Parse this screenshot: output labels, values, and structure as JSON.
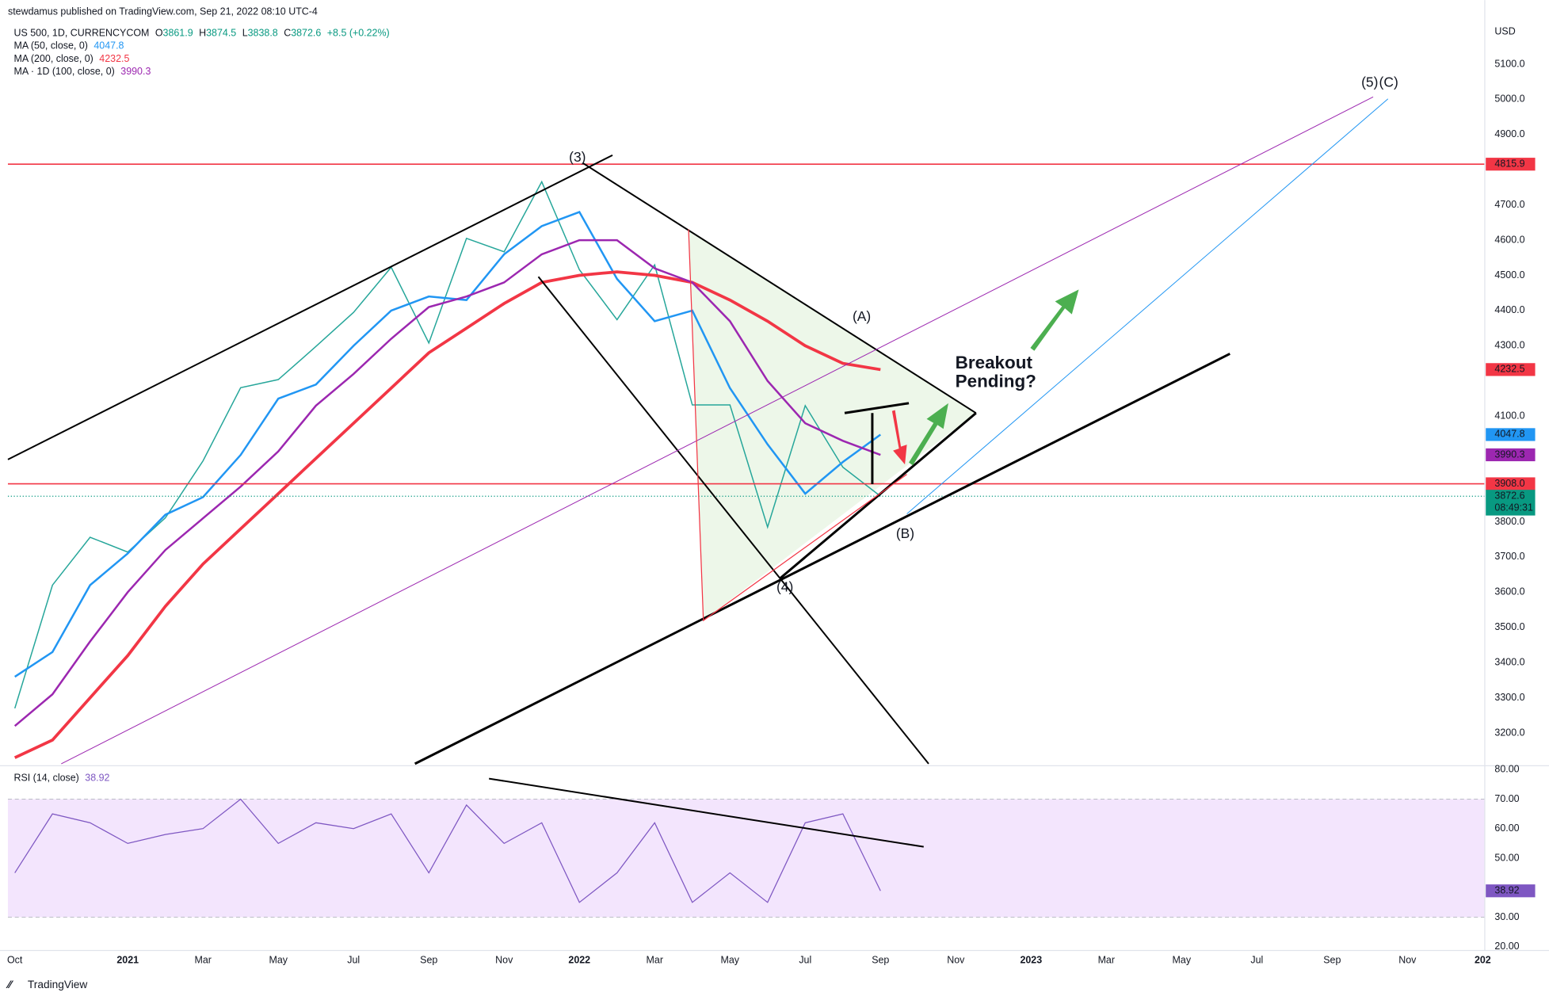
{
  "header": {
    "publisher": "stewdamus published on TradingView.com, Sep 21, 2022 08:10 UTC-4",
    "symbol": "US 500, 1D, CURRENCYCOM",
    "ohlc": [
      {
        "label": "O",
        "value": 3861.9
      },
      {
        "label": "H",
        "value": 3874.5
      },
      {
        "label": "L",
        "value": 3838.8
      },
      {
        "label": "C",
        "value": 3872.6
      }
    ],
    "change": "+8.5 (+0.22%)",
    "currency": "USD",
    "footer": "TradingView"
  },
  "annotations": {
    "w3": "(3)",
    "w4": "(4)",
    "wA": "(A)",
    "wB": "(B)",
    "w5": "(5)",
    "wC": "(C)",
    "breakout1": "Breakout",
    "breakout2": "Pending?"
  },
  "chart_data": [
    {
      "type": "line",
      "categories": [
        "Oct",
        null,
        null,
        "2021",
        null,
        "Mar",
        null,
        "May",
        null,
        "Jul",
        null,
        "Sep",
        null,
        "Nov",
        null,
        "2022",
        null,
        "Mar",
        null,
        "May",
        null,
        "Jul",
        null,
        "Sep",
        null,
        "Nov",
        null,
        "2023",
        null,
        "Mar",
        null,
        "May",
        null,
        "Jul",
        null,
        "Sep",
        null,
        "Nov",
        null,
        "202"
      ],
      "ylim": [
        3107,
        5282
      ],
      "yticks": [
        {
          "value": 3200,
          "label": "3200.0"
        },
        {
          "value": 3300,
          "label": "3300.0"
        },
        {
          "value": 3400,
          "label": "3400.0"
        },
        {
          "value": 3500,
          "label": "3500.0"
        },
        {
          "value": 3600,
          "label": "3600.0"
        },
        {
          "value": 3700,
          "label": "3700.0"
        },
        {
          "value": 3800,
          "label": "3800.0"
        },
        {
          "value": 4100,
          "label": "4100.0"
        },
        {
          "value": 4300,
          "label": "4300.0"
        },
        {
          "value": 4400,
          "label": "4400.0"
        },
        {
          "value": 4500,
          "label": "4500.0"
        },
        {
          "value": 4600,
          "label": "4600.0"
        },
        {
          "value": 4700,
          "label": "4700.0"
        },
        {
          "value": 4900,
          "label": "4900.0"
        },
        {
          "value": 5000,
          "label": "5000.0"
        },
        {
          "value": 5100,
          "label": "5100.0"
        }
      ],
      "levels": [
        {
          "value": 4815.9,
          "label": "4815.9",
          "color": "#f23645"
        },
        {
          "value": 3908,
          "label": "3908.0",
          "color": "#f23645"
        }
      ],
      "last_price": {
        "value": 3872.6,
        "label": "3872.6",
        "countdown": "08:49:31",
        "color": "#089981"
      },
      "series": [
        {
          "name": "Price",
          "color": "#26a69a",
          "values": [
            3270,
            3620,
            3756,
            3714,
            3811,
            3973,
            4181,
            4204,
            4298,
            4395,
            4523,
            4308,
            4605,
            4567,
            4766,
            4516,
            4374,
            4530,
            4132,
            4132,
            3785,
            4130,
            3955,
            3872.6,
            null,
            null,
            null,
            null,
            null,
            null,
            null,
            null,
            null,
            null,
            null,
            null,
            null,
            null,
            null,
            null
          ]
        },
        {
          "name": "MA (50, close, 0)",
          "color": "#2196f3",
          "values": [
            3360,
            3430,
            3620,
            3710,
            3820,
            3870,
            3990,
            4150,
            4190,
            4300,
            4400,
            4440,
            4430,
            4560,
            4640,
            4680,
            4490,
            4370,
            4400,
            4180,
            4020,
            3880,
            3970,
            4047.8,
            null,
            null,
            null,
            null,
            null,
            null,
            null,
            null,
            null,
            null,
            null,
            null,
            null,
            null,
            null,
            null
          ]
        },
        {
          "name": "MA (200, close, 0)",
          "color": "#f23645",
          "values": [
            3130,
            3180,
            3300,
            3420,
            3560,
            3680,
            3780,
            3880,
            3980,
            4080,
            4180,
            4280,
            4350,
            4420,
            4480,
            4500,
            4510,
            4500,
            4480,
            4430,
            4370,
            4300,
            4250,
            4232.5,
            null,
            null,
            null,
            null,
            null,
            null,
            null,
            null,
            null,
            null,
            null,
            null,
            null,
            null,
            null,
            null
          ]
        },
        {
          "name": "MA · 1D (100, close, 0)",
          "color": "#9c27b0",
          "values": [
            3220,
            3310,
            3460,
            3600,
            3720,
            3810,
            3900,
            4000,
            4130,
            4220,
            4320,
            4410,
            4440,
            4480,
            4560,
            4600,
            4600,
            4520,
            4480,
            4370,
            4200,
            4080,
            4030,
            3990.3,
            null,
            null,
            null,
            null,
            null,
            null,
            null,
            null,
            null,
            null,
            null,
            null,
            null,
            null,
            null,
            null
          ]
        }
      ]
    },
    {
      "type": "line",
      "ylim": [
        18.7,
        81.3
      ],
      "yticks": [
        {
          "value": 20,
          "label": "20.00"
        },
        {
          "value": 30,
          "label": "30.00"
        },
        {
          "value": 50,
          "label": "50.00"
        },
        {
          "value": 60,
          "label": "60.00"
        },
        {
          "value": 70,
          "label": "70.00"
        },
        {
          "value": 80,
          "label": "80.00"
        }
      ],
      "band": [
        30,
        70
      ],
      "series": [
        {
          "name": "RSI (14, close)",
          "color": "#7e57c2",
          "values": [
            45,
            65,
            62,
            55,
            58,
            60,
            70,
            55,
            62,
            60,
            65,
            45,
            68,
            55,
            62,
            35,
            45,
            62,
            35,
            45,
            35,
            62,
            65,
            38.92,
            null,
            null,
            null,
            null,
            null,
            null,
            null,
            null,
            null,
            null,
            null,
            null,
            null,
            null,
            null,
            null
          ]
        }
      ]
    }
  ]
}
